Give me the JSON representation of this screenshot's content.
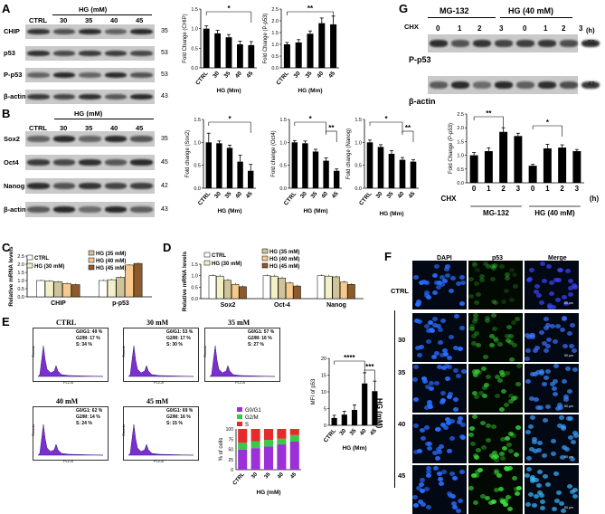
{
  "panels": {
    "A": "A",
    "B": "B",
    "C": "C",
    "D": "D",
    "E": "E",
    "F": "F",
    "G": "G"
  },
  "doses": [
    "30",
    "35",
    "40",
    "45"
  ],
  "ctrl": "CTRL",
  "hg_mm_label": "HG (mM)",
  "hg_Mm_label": "HG (Mm)",
  "panelA": {
    "rows": [
      {
        "name": "CHIP",
        "kda": "35"
      },
      {
        "name": "p53",
        "kda": "53"
      },
      {
        "name": "P-p53",
        "kda": "53"
      },
      {
        "name": "β-actin",
        "kda": "43"
      }
    ]
  },
  "panelB": {
    "rows": [
      {
        "name": "Sox2",
        "kda": "35"
      },
      {
        "name": "Oct4",
        "kda": "45"
      },
      {
        "name": "Nanog",
        "kda": "42"
      },
      {
        "name": "β-actin",
        "kda": "43"
      }
    ]
  },
  "panelG": {
    "group1": "MG-132",
    "group2": "HG (40 mM)",
    "chx": "CHX",
    "times": [
      "0",
      "1",
      "2",
      "3",
      "0",
      "1",
      "2",
      "3"
    ],
    "unit": "(h)",
    "rows": [
      {
        "name": "P-p53",
        "kda": "53"
      },
      {
        "name": "β-actin",
        "kda": "43"
      }
    ]
  },
  "legendC": [
    "CTRL",
    "HG (30 mM)",
    "HG (35 mM)",
    "HG (40 mM)",
    "HG (45 mM)"
  ],
  "legendD": [
    "CTRL",
    "HG (30 mM)",
    "HG (35 mM)",
    "HG (40 mM)",
    "HG (45 mM)"
  ],
  "legendE": [
    "G0/G1",
    "G2/M",
    "S"
  ],
  "colors": {
    "c0": "#ffffff",
    "c1": "#f3f0c8",
    "c2": "#cfc39a",
    "c3": "#f7c98d",
    "c4": "#8c5a2b",
    "g0": "#9b30d8",
    "g2m": "#38c84a",
    "s": "#e52a2a",
    "flow": "#7b2fd0"
  },
  "flow": [
    {
      "title": "CTRL",
      "g0": "G0/G1: 49 %",
      "g2": "G2/M: 17 %",
      "s": "S: 34 %"
    },
    {
      "title": "30 mM",
      "g0": "G0/G1: 53 %",
      "g2": "G2/M: 17 %",
      "s": "S: 30 %"
    },
    {
      "title": "35 mM",
      "g0": "G0/G1: 57 %",
      "g2": "G2/M: 16 %",
      "s": "S: 27 %"
    },
    {
      "title": "40 mM",
      "g0": "G0/G1: 62 %",
      "g2": "G2/M: 14 %",
      "s": "S: 24 %"
    },
    {
      "title": "45 mM",
      "g0": "G0/G1: 69 %",
      "g2": "G2/M: 16 %",
      "s": "S: 15 %"
    }
  ],
  "flow_axes": {
    "x": "FL2-A",
    "y": "Counts"
  },
  "micro": {
    "cols": [
      "DAPI",
      "p53",
      "Merge"
    ],
    "rows": [
      "CTRL",
      "30",
      "35",
      "40",
      "45"
    ],
    "side": "HG (mM)",
    "scale": "50 μm"
  },
  "sig": {
    "one": "*",
    "two": "**",
    "three": "***",
    "four": "****"
  },
  "chart_data": [
    {
      "id": "A1",
      "type": "bar",
      "ylabel": "Fold Change (CHIP)",
      "xlabel": "HG (Mm)",
      "categories": [
        "CTRL",
        "30",
        "35",
        "40",
        "45"
      ],
      "values": [
        1.0,
        0.88,
        0.78,
        0.6,
        0.58
      ],
      "errors": [
        0.07,
        0.08,
        0.07,
        0.08,
        0.09
      ],
      "ylim": [
        0,
        1.5
      ],
      "yticks": [
        "0.0",
        "0.5",
        "1.0",
        "1.5"
      ],
      "sig": [
        {
          "from": 0,
          "to": 4,
          "label": "*"
        }
      ]
    },
    {
      "id": "A2",
      "type": "bar",
      "ylabel": "Fold Change (P-p53)",
      "xlabel": "HG (Mm)",
      "categories": [
        "CTRL",
        "30",
        "35",
        "40",
        "45"
      ],
      "values": [
        1.0,
        1.08,
        1.45,
        1.9,
        1.85
      ],
      "errors": [
        0.08,
        0.12,
        0.12,
        0.22,
        0.35
      ],
      "ylim": [
        0,
        2.5
      ],
      "yticks": [
        "0.0",
        "0.5",
        "1.0",
        "1.5",
        "2.0",
        "2.5"
      ],
      "sig": [
        {
          "from": 0,
          "to": 4,
          "label": "**"
        }
      ]
    },
    {
      "id": "B1",
      "type": "bar",
      "ylabel": "Fold change (Sox2)",
      "xlabel": "HG (Mm)",
      "categories": [
        "CTRL",
        "30",
        "35",
        "40",
        "45"
      ],
      "values": [
        1.0,
        0.98,
        0.88,
        0.58,
        0.38
      ],
      "errors": [
        0.2,
        0.05,
        0.06,
        0.14,
        0.14
      ],
      "ylim": [
        0,
        1.5
      ],
      "yticks": [
        "0.0",
        "0.5",
        "1.0",
        "1.5"
      ],
      "sig": [
        {
          "from": 0,
          "to": 4,
          "label": "*"
        }
      ]
    },
    {
      "id": "B2",
      "type": "bar",
      "ylabel": "Fold change (Oct4)",
      "xlabel": "HG (Mm)",
      "categories": [
        "CTRL",
        "30",
        "35",
        "40",
        "45"
      ],
      "values": [
        1.0,
        0.98,
        0.8,
        0.6,
        0.38
      ],
      "errors": [
        0.04,
        0.05,
        0.05,
        0.06,
        0.04
      ],
      "ylim": [
        0,
        1.5
      ],
      "yticks": [
        "0.0",
        "0.5",
        "1.0",
        "1.5"
      ],
      "sig": [
        {
          "from": 0,
          "to": 3,
          "label": "*"
        },
        {
          "from": 3,
          "to": 4,
          "label": "**"
        }
      ]
    },
    {
      "id": "B3",
      "type": "bar",
      "ylabel": "Fold change (Nanog)",
      "xlabel": "HG (Mm)",
      "categories": [
        "CTRL",
        "30",
        "35",
        "40",
        "45"
      ],
      "values": [
        1.0,
        0.9,
        0.75,
        0.62,
        0.58
      ],
      "errors": [
        0.05,
        0.05,
        0.07,
        0.05,
        0.04
      ],
      "ylim": [
        0,
        1.5
      ],
      "yticks": [
        "0.0",
        "0.5",
        "1.0",
        "1.5"
      ],
      "sig": [
        {
          "from": 0,
          "to": 3,
          "label": "*"
        },
        {
          "from": 3,
          "to": 4,
          "label": "**"
        }
      ]
    },
    {
      "id": "G1",
      "type": "bar",
      "ylabel": "Fold Change (P-p53)",
      "xlabel": "",
      "categories": [
        "0",
        "1",
        "2",
        "3",
        "0",
        "1",
        "2",
        "3"
      ],
      "values": [
        1.0,
        1.15,
        1.85,
        1.7,
        0.62,
        1.25,
        1.28,
        1.15
      ],
      "errors": [
        0.1,
        0.12,
        0.15,
        0.1,
        0.05,
        0.15,
        0.1,
        0.06
      ],
      "ylim": [
        0,
        2.5
      ],
      "yticks": [
        "0.0",
        "0.5",
        "1.0",
        "1.5",
        "2.0",
        "2.5"
      ],
      "sig": [
        {
          "from": 0,
          "to": 2,
          "label": "**"
        },
        {
          "from": 4,
          "to": 6,
          "label": "*"
        }
      ]
    },
    {
      "id": "C",
      "type": "bar",
      "ylabel": "Relative mRNA levels",
      "categories": [
        "CHIP",
        "p-p53"
      ],
      "series": [
        {
          "name": "CTRL",
          "values": [
            1.0,
            1.0
          ]
        },
        {
          "name": "HG (30 mM)",
          "values": [
            0.96,
            1.05
          ]
        },
        {
          "name": "HG (35 mM)",
          "values": [
            0.92,
            1.2
          ]
        },
        {
          "name": "HG (40 mM)",
          "values": [
            0.82,
            1.95
          ]
        },
        {
          "name": "HG (45 mM)",
          "values": [
            0.75,
            2.05
          ]
        }
      ],
      "ylim": [
        0,
        2.5
      ],
      "yticks": [
        "0.0",
        "0.5",
        "1.0",
        "1.5",
        "2.0",
        "2.5"
      ]
    },
    {
      "id": "D",
      "type": "bar",
      "ylabel": "Relative mRNA levels",
      "categories": [
        "Sox2",
        "Oct-4",
        "Nanog"
      ],
      "series": [
        {
          "name": "CTRL",
          "values": [
            1.0,
            1.0,
            1.0
          ]
        },
        {
          "name": "HG (30 mM)",
          "values": [
            0.98,
            0.98,
            0.98
          ]
        },
        {
          "name": "HG (35 mM)",
          "values": [
            0.8,
            0.9,
            0.95
          ]
        },
        {
          "name": "HG (40 mM)",
          "values": [
            0.62,
            0.68,
            0.72
          ]
        },
        {
          "name": "HG (45 mM)",
          "values": [
            0.52,
            0.55,
            0.62
          ]
        }
      ],
      "ylim": [
        0,
        1.5
      ],
      "yticks": [
        "0.0",
        "0.5",
        "1.0",
        "1.5"
      ]
    },
    {
      "id": "E1",
      "type": "bar",
      "ylabel": "% of cells",
      "xlabel": "HG (mM)",
      "categories": [
        "CTRL",
        "30",
        "35",
        "40",
        "45"
      ],
      "series": [
        {
          "name": "G0/G1",
          "values": [
            49,
            53,
            57,
            62,
            69
          ]
        },
        {
          "name": "G2/M",
          "values": [
            17,
            17,
            16,
            14,
            16
          ]
        },
        {
          "name": "S",
          "values": [
            34,
            30,
            27,
            24,
            15
          ]
        }
      ],
      "ylim": [
        0,
        100
      ],
      "yticks": [
        "0",
        "25",
        "50",
        "75",
        "100"
      ]
    },
    {
      "id": "E2",
      "type": "bar",
      "ylabel": "MFI of p53",
      "xlabel": "HG (Mm)",
      "categories": [
        "CTRL",
        "30",
        "35",
        "40",
        "45"
      ],
      "values": [
        2.2,
        3.2,
        4.6,
        12.5,
        10.2
      ],
      "errors": [
        0.8,
        1.0,
        1.5,
        3.2,
        3.0
      ],
      "ylim": [
        0,
        20
      ],
      "yticks": [
        "0",
        "5",
        "10",
        "15",
        "20"
      ],
      "sig": [
        {
          "from": 0,
          "to": 3,
          "label": "****"
        },
        {
          "from": 3,
          "to": 4,
          "label": "***"
        }
      ]
    }
  ]
}
